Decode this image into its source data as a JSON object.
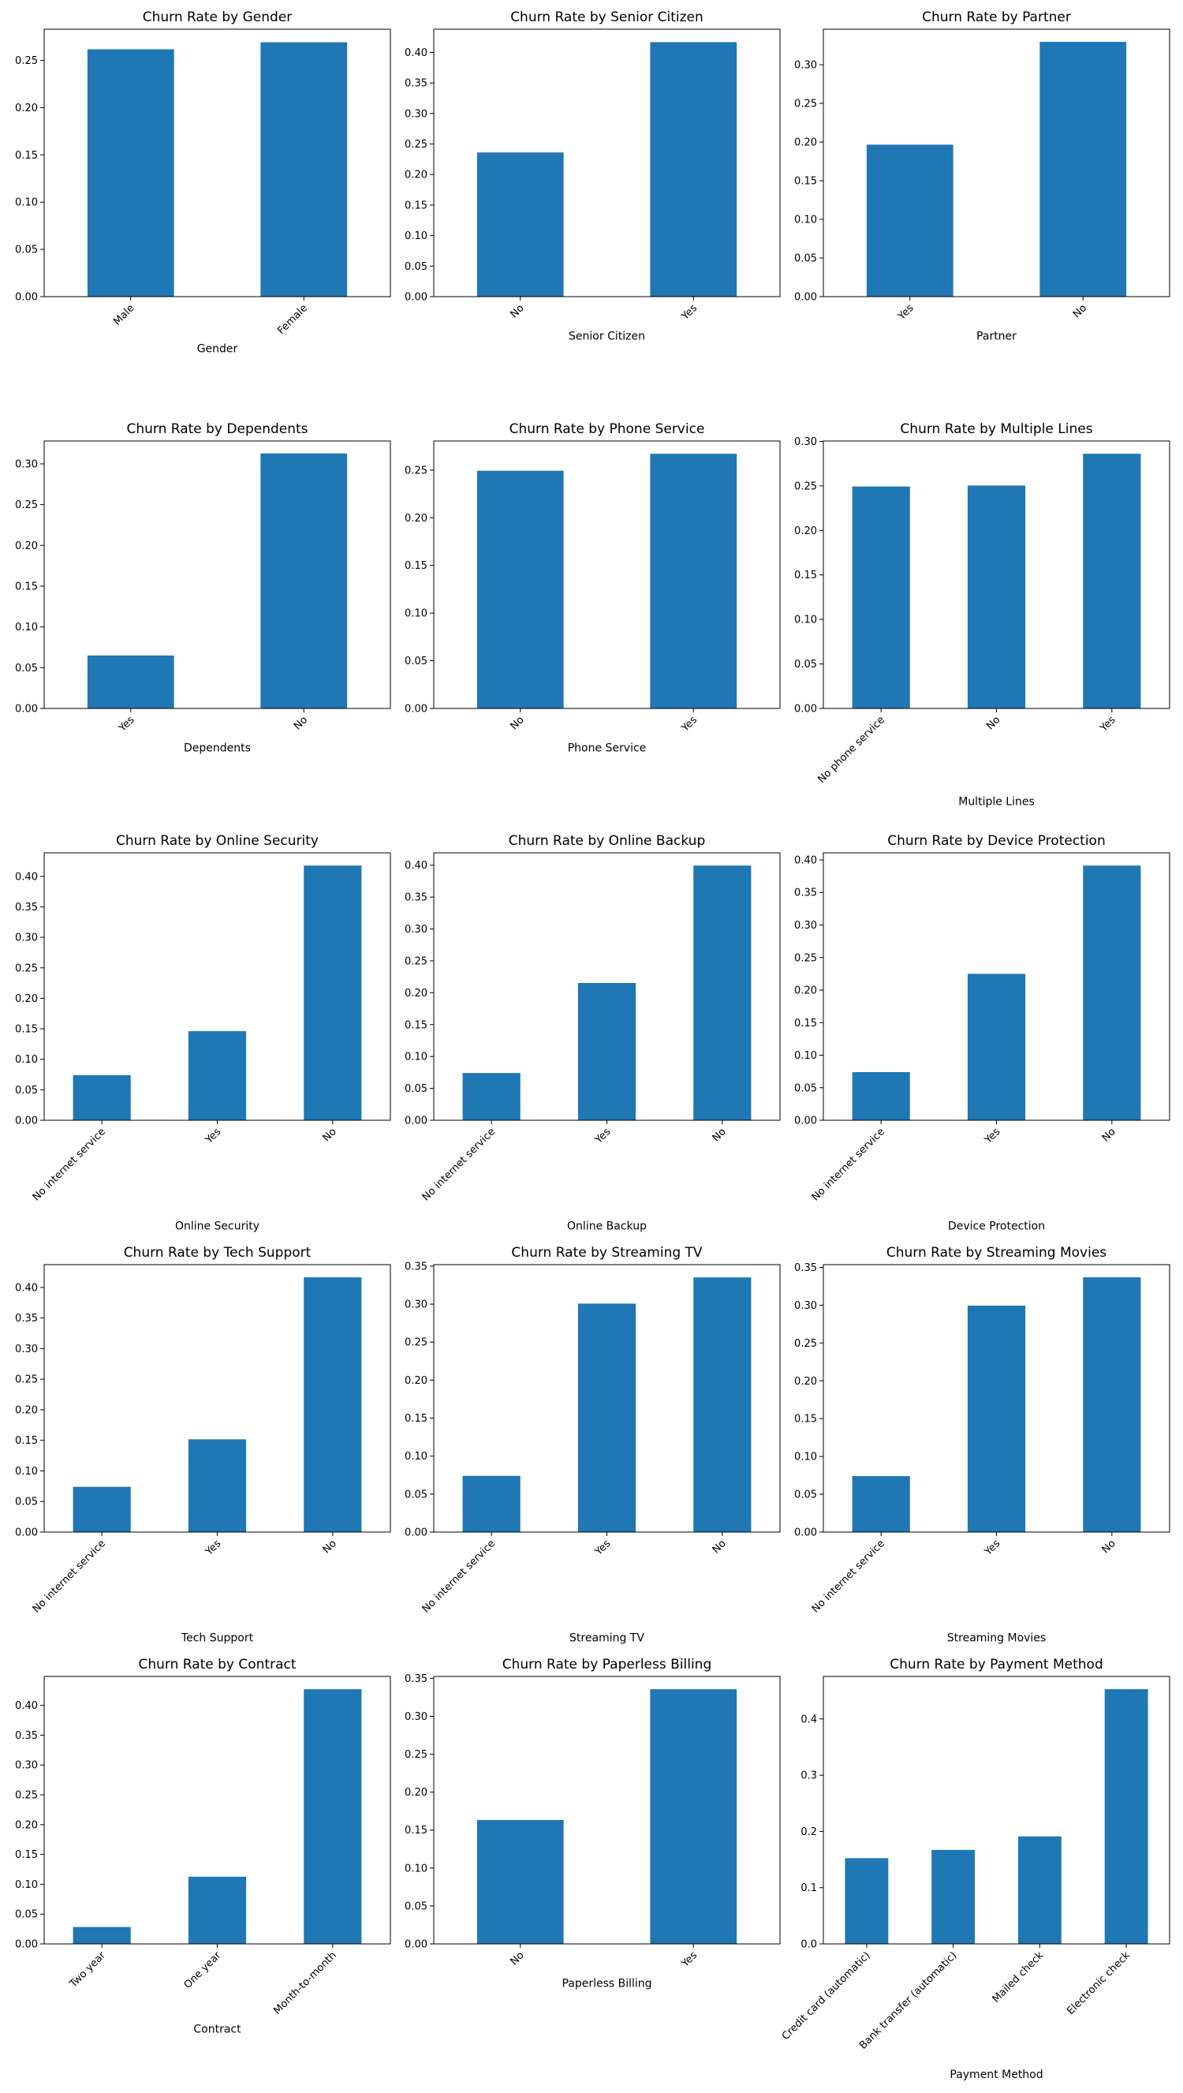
{
  "colors": {
    "bar": "#1f77b4",
    "axis": "#000000",
    "background": "#ffffff"
  },
  "chart_data": [
    {
      "type": "bar",
      "title": "Churn Rate by Gender",
      "xlabel": "Gender",
      "ylabel": "",
      "categories": [
        "Male",
        "Female"
      ],
      "values": [
        0.2617,
        0.2692
      ],
      "ylim": [
        0,
        0.283
      ],
      "yticks": [
        0,
        0.05,
        0.1,
        0.15,
        0.2,
        0.25
      ],
      "ytick_labels": [
        "0.00",
        "0.05",
        "0.10",
        "0.15",
        "0.20",
        "0.25"
      ]
    },
    {
      "type": "bar",
      "title": "Churn Rate by Senior Citizen",
      "xlabel": "Senior Citizen",
      "ylabel": "",
      "categories": [
        "No",
        "Yes"
      ],
      "values": [
        0.2361,
        0.4168
      ],
      "ylim": [
        0,
        0.438
      ],
      "yticks": [
        0,
        0.05,
        0.1,
        0.15,
        0.2,
        0.25,
        0.3,
        0.35,
        0.4
      ],
      "ytick_labels": [
        "0.00",
        "0.05",
        "0.10",
        "0.15",
        "0.20",
        "0.25",
        "0.30",
        "0.35",
        "0.40"
      ]
    },
    {
      "type": "bar",
      "title": "Churn Rate by Partner",
      "xlabel": "Partner",
      "ylabel": "",
      "categories": [
        "Yes",
        "No"
      ],
      "values": [
        0.1966,
        0.3296
      ],
      "ylim": [
        0,
        0.346
      ],
      "yticks": [
        0,
        0.05,
        0.1,
        0.15,
        0.2,
        0.25,
        0.3
      ],
      "ytick_labels": [
        "0.00",
        "0.05",
        "0.10",
        "0.15",
        "0.20",
        "0.25",
        "0.30"
      ]
    },
    {
      "type": "bar",
      "title": "Churn Rate by Dependents",
      "xlabel": "Dependents",
      "ylabel": "",
      "categories": [
        "Yes",
        "No"
      ],
      "values": [
        0.065,
        0.3128
      ],
      "ylim": [
        0,
        0.328
      ],
      "yticks": [
        0,
        0.05,
        0.1,
        0.15,
        0.2,
        0.25,
        0.3
      ],
      "ytick_labels": [
        "0.00",
        "0.05",
        "0.10",
        "0.15",
        "0.20",
        "0.25",
        "0.30"
      ]
    },
    {
      "type": "bar",
      "title": "Churn Rate by Phone Service",
      "xlabel": "Phone Service",
      "ylabel": "",
      "categories": [
        "No",
        "Yes"
      ],
      "values": [
        0.2493,
        0.2671
      ],
      "ylim": [
        0,
        0.2805
      ],
      "yticks": [
        0,
        0.05,
        0.1,
        0.15,
        0.2,
        0.25
      ],
      "ytick_labels": [
        "0.00",
        "0.05",
        "0.10",
        "0.15",
        "0.20",
        "0.25"
      ]
    },
    {
      "type": "bar",
      "title": "Churn Rate by Multiple Lines",
      "xlabel": "Multiple Lines",
      "ylabel": "",
      "categories": [
        "No phone service",
        "No",
        "Yes"
      ],
      "values": [
        0.2493,
        0.2504,
        0.2861
      ],
      "ylim": [
        0,
        0.3004
      ],
      "yticks": [
        0,
        0.05,
        0.1,
        0.15,
        0.2,
        0.25,
        0.3
      ],
      "ytick_labels": [
        "0.00",
        "0.05",
        "0.10",
        "0.15",
        "0.20",
        "0.25",
        "0.30"
      ]
    },
    {
      "type": "bar",
      "title": "Churn Rate by Online Security",
      "xlabel": "Online Security",
      "ylabel": "",
      "categories": [
        "No internet service",
        "Yes",
        "No"
      ],
      "values": [
        0.074,
        0.1461,
        0.4177
      ],
      "ylim": [
        0,
        0.4386
      ],
      "yticks": [
        0,
        0.05,
        0.1,
        0.15,
        0.2,
        0.25,
        0.3,
        0.35,
        0.4
      ],
      "ytick_labels": [
        "0.00",
        "0.05",
        "0.10",
        "0.15",
        "0.20",
        "0.25",
        "0.30",
        "0.35",
        "0.40"
      ]
    },
    {
      "type": "bar",
      "title": "Churn Rate by Online Backup",
      "xlabel": "Online Backup",
      "ylabel": "",
      "categories": [
        "No internet service",
        "Yes",
        "No"
      ],
      "values": [
        0.074,
        0.2153,
        0.3994
      ],
      "ylim": [
        0,
        0.4194
      ],
      "yticks": [
        0,
        0.05,
        0.1,
        0.15,
        0.2,
        0.25,
        0.3,
        0.35,
        0.4
      ],
      "ytick_labels": [
        "0.00",
        "0.05",
        "0.10",
        "0.15",
        "0.20",
        "0.25",
        "0.30",
        "0.35",
        "0.40"
      ]
    },
    {
      "type": "bar",
      "title": "Churn Rate by Device Protection",
      "xlabel": "Device Protection",
      "ylabel": "",
      "categories": [
        "No internet service",
        "Yes",
        "No"
      ],
      "values": [
        0.074,
        0.225,
        0.3913
      ],
      "ylim": [
        0,
        0.4109
      ],
      "yticks": [
        0,
        0.05,
        0.1,
        0.15,
        0.2,
        0.25,
        0.3,
        0.35,
        0.4
      ],
      "ytick_labels": [
        "0.00",
        "0.05",
        "0.10",
        "0.15",
        "0.20",
        "0.25",
        "0.30",
        "0.35",
        "0.40"
      ]
    },
    {
      "type": "bar",
      "title": "Churn Rate by Tech Support",
      "xlabel": "Tech Support",
      "ylabel": "",
      "categories": [
        "No internet service",
        "Yes",
        "No"
      ],
      "values": [
        0.074,
        0.1517,
        0.4164
      ],
      "ylim": [
        0,
        0.4372
      ],
      "yticks": [
        0,
        0.05,
        0.1,
        0.15,
        0.2,
        0.25,
        0.3,
        0.35,
        0.4
      ],
      "ytick_labels": [
        "0.00",
        "0.05",
        "0.10",
        "0.15",
        "0.20",
        "0.25",
        "0.30",
        "0.35",
        "0.40"
      ]
    },
    {
      "type": "bar",
      "title": "Churn Rate by Streaming TV",
      "xlabel": "Streaming TV",
      "ylabel": "",
      "categories": [
        "No internet service",
        "Yes",
        "No"
      ],
      "values": [
        0.074,
        0.3007,
        0.3352
      ],
      "ylim": [
        0,
        0.352
      ],
      "yticks": [
        0,
        0.05,
        0.1,
        0.15,
        0.2,
        0.25,
        0.3,
        0.35
      ],
      "ytick_labels": [
        "0.00",
        "0.05",
        "0.10",
        "0.15",
        "0.20",
        "0.25",
        "0.30",
        "0.35"
      ]
    },
    {
      "type": "bar",
      "title": "Churn Rate by Streaming Movies",
      "xlabel": "Streaming Movies",
      "ylabel": "",
      "categories": [
        "No internet service",
        "Yes",
        "No"
      ],
      "values": [
        0.074,
        0.2994,
        0.3368
      ],
      "ylim": [
        0,
        0.3536
      ],
      "yticks": [
        0,
        0.05,
        0.1,
        0.15,
        0.2,
        0.25,
        0.3,
        0.35
      ],
      "ytick_labels": [
        "0.00",
        "0.05",
        "0.10",
        "0.15",
        "0.20",
        "0.25",
        "0.30",
        "0.35"
      ]
    },
    {
      "type": "bar",
      "title": "Churn Rate by Contract",
      "xlabel": "Contract",
      "ylabel": "",
      "categories": [
        "Two year",
        "One year",
        "Month-to-month"
      ],
      "values": [
        0.0283,
        0.1127,
        0.4271
      ],
      "ylim": [
        0,
        0.4485
      ],
      "yticks": [
        0,
        0.05,
        0.1,
        0.15,
        0.2,
        0.25,
        0.3,
        0.35,
        0.4
      ],
      "ytick_labels": [
        "0.00",
        "0.05",
        "0.10",
        "0.15",
        "0.20",
        "0.25",
        "0.30",
        "0.35",
        "0.40"
      ]
    },
    {
      "type": "bar",
      "title": "Churn Rate by Paperless Billing",
      "xlabel": "Paperless Billing",
      "ylabel": "",
      "categories": [
        "No",
        "Yes"
      ],
      "values": [
        0.1633,
        0.3357
      ],
      "ylim": [
        0,
        0.3525
      ],
      "yticks": [
        0,
        0.05,
        0.1,
        0.15,
        0.2,
        0.25,
        0.3,
        0.35
      ],
      "ytick_labels": [
        "0.00",
        "0.05",
        "0.10",
        "0.15",
        "0.20",
        "0.25",
        "0.30",
        "0.35"
      ]
    },
    {
      "type": "bar",
      "title": "Churn Rate by Payment Method",
      "xlabel": "Payment Method",
      "ylabel": "",
      "categories": [
        "Credit card (automatic)",
        "Bank transfer (automatic)",
        "Mailed check",
        "Electronic check"
      ],
      "values": [
        0.1524,
        0.1671,
        0.1911,
        0.4529
      ],
      "ylim": [
        0,
        0.4755
      ],
      "yticks": [
        0,
        0.1,
        0.2,
        0.3,
        0.4
      ],
      "ytick_labels": [
        "0.0",
        "0.1",
        "0.2",
        "0.3",
        "0.4"
      ]
    }
  ]
}
